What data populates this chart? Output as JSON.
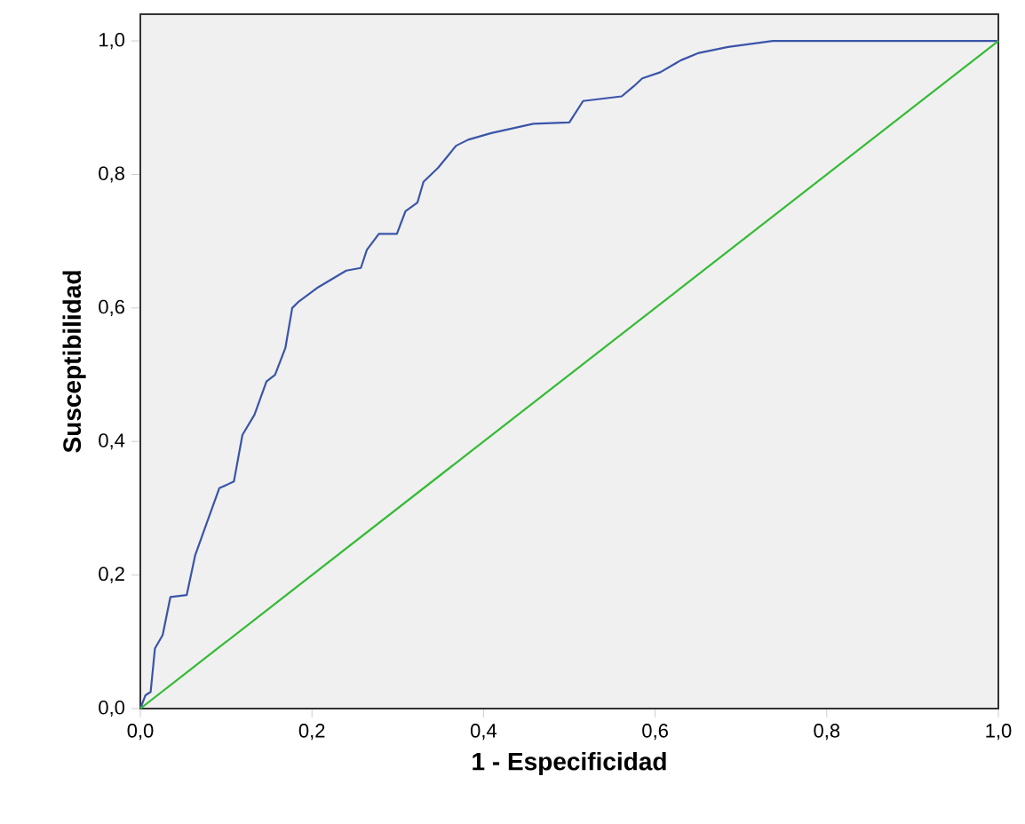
{
  "chart_data": {
    "type": "line",
    "xlabel": "1 - Especificidad",
    "ylabel": "Susceptibilidad",
    "xlim": [
      0,
      1
    ],
    "ylim": [
      0,
      1.04
    ],
    "xticks": [
      {
        "value": 0,
        "label": "0,0"
      },
      {
        "value": 0.2,
        "label": "0,2"
      },
      {
        "value": 0.4,
        "label": "0,4"
      },
      {
        "value": 0.6,
        "label": "0,6"
      },
      {
        "value": 0.8,
        "label": "0,8"
      },
      {
        "value": 1,
        "label": "1,0"
      }
    ],
    "yticks": [
      {
        "value": 0,
        "label": "0,0"
      },
      {
        "value": 0.2,
        "label": "0,2"
      },
      {
        "value": 0.4,
        "label": "0,4"
      },
      {
        "value": 0.6,
        "label": "0,6"
      },
      {
        "value": 0.8,
        "label": "0,8"
      },
      {
        "value": 1,
        "label": "1,0"
      }
    ],
    "grid": false,
    "marker": "none",
    "line_style": "solid",
    "series": [
      {
        "color": "#3a55a8",
        "x": [
          0,
          0.006,
          0.012,
          0.017,
          0.026,
          0.035,
          0.054,
          0.064,
          0.078,
          0.092,
          0.109,
          0.119,
          0.133,
          0.147,
          0.157,
          0.169,
          0.177,
          0.185,
          0.206,
          0.24,
          0.257,
          0.264,
          0.278,
          0.299,
          0.309,
          0.323,
          0.33,
          0.347,
          0.368,
          0.382,
          0.409,
          0.458,
          0.5,
          0.516,
          0.561,
          0.575,
          0.585,
          0.606,
          0.63,
          0.651,
          0.685,
          0.737,
          1
        ],
        "values": [
          0,
          0.02,
          0.025,
          0.09,
          0.11,
          0.167,
          0.17,
          0.23,
          0.28,
          0.33,
          0.34,
          0.41,
          0.44,
          0.49,
          0.5,
          0.54,
          0.6,
          0.61,
          0.63,
          0.656,
          0.66,
          0.687,
          0.711,
          0.711,
          0.745,
          0.758,
          0.789,
          0.81,
          0.843,
          0.852,
          0.862,
          0.876,
          0.878,
          0.91,
          0.917,
          0.932,
          0.944,
          0.953,
          0.971,
          0.982,
          0.991,
          1,
          1
        ]
      },
      {
        "color": "#33bb33",
        "x": [
          0,
          1
        ],
        "values": [
          0,
          1
        ]
      }
    ]
  }
}
